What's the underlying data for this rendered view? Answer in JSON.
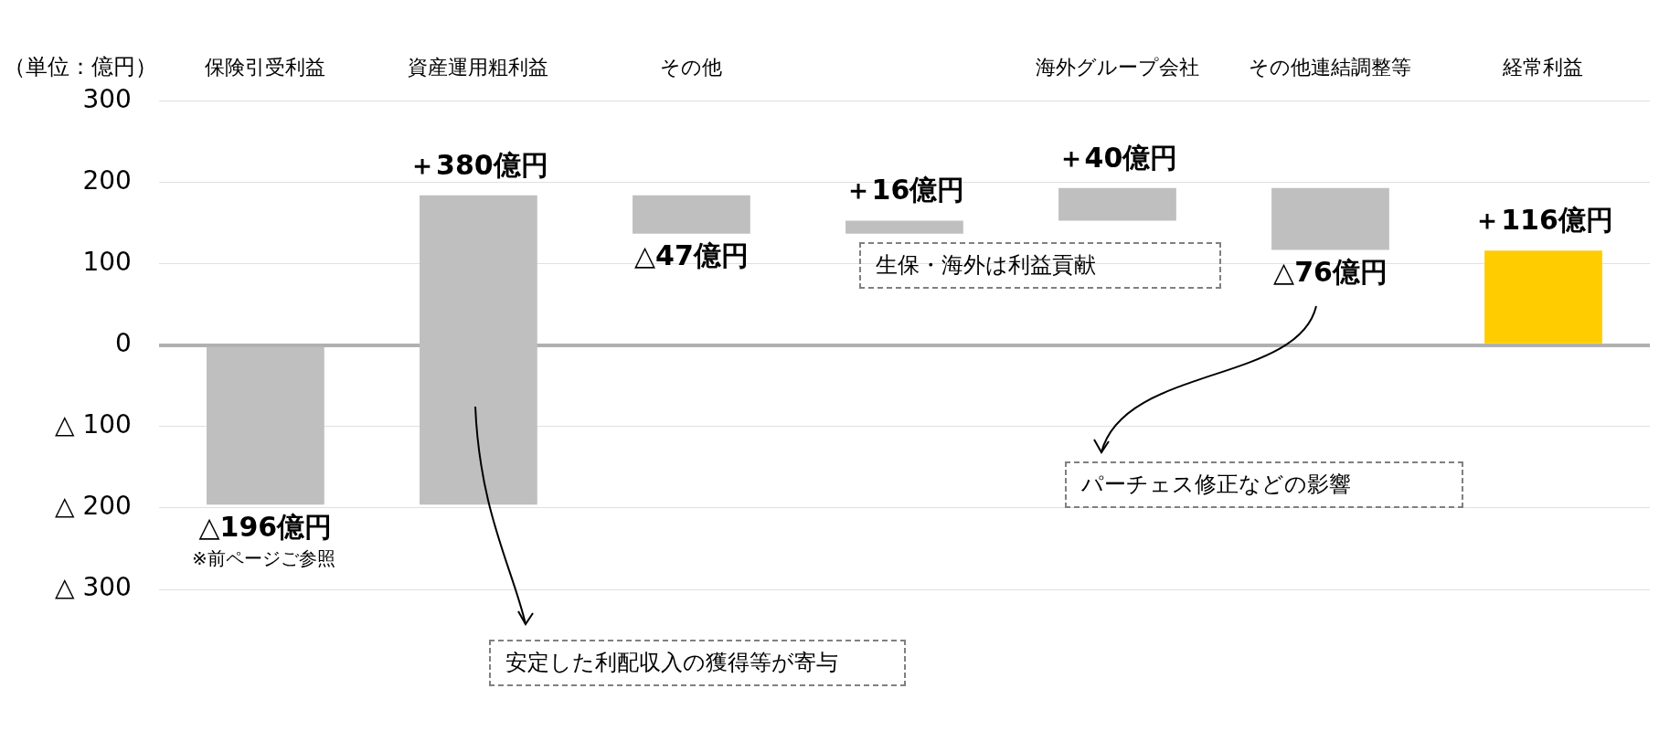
{
  "chart_data": {
    "type": "bar",
    "ylabel": "（単位：億円）",
    "categories": [
      "保険引受利益",
      "資産運用粗利益",
      "その他",
      null,
      "海外グループ会社",
      "その他連結調整等",
      "経常利益"
    ],
    "values": [
      -196,
      380,
      -47,
      16,
      40,
      -76,
      116
    ],
    "base": [
      0,
      -196,
      184,
      137,
      153,
      193,
      0
    ],
    "colors": [
      "#bfbfbf",
      "#bfbfbf",
      "#bfbfbf",
      "#bfbfbf",
      "#bfbfbf",
      "#bfbfbf",
      "#ffcc00"
    ],
    "value_labels": [
      "△196億円",
      "＋380億円",
      "△47億円",
      "＋16億円",
      "＋40億円",
      "△76億円",
      "＋116億円"
    ],
    "ylim": [
      -300,
      300
    ],
    "yticks": [
      300,
      200,
      100,
      0,
      {
        "value": -100,
        "label": "△ 100"
      },
      {
        "value": -200,
        "label": "△ 200"
      },
      {
        "value": -300,
        "label": "△ 300"
      }
    ],
    "grid": "y",
    "legend": false,
    "annotations": [
      "※前ページご参照",
      "生保・海外は利益貢献",
      "安定した利配収入の獲得等が寄与",
      "パーチェス修正などの影響"
    ]
  }
}
